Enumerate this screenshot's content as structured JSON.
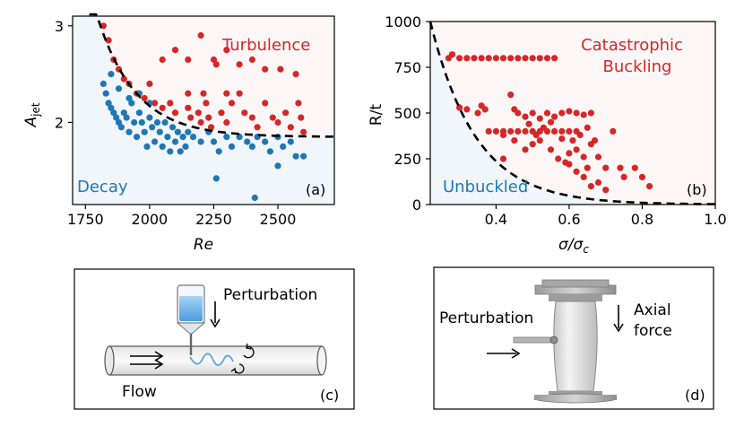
{
  "chart_data": [
    {
      "type": "scatter",
      "panel_label": "(a)",
      "xlabel": "Re",
      "ylabel_base": "A",
      "ylabel_sub": "jet",
      "xlim": [
        1700,
        2720
      ],
      "ylim": [
        1.15,
        3.1
      ],
      "xticks": [
        1750,
        2000,
        2250,
        2500
      ],
      "yticks": [
        2,
        3
      ],
      "region_labels": {
        "upper": "Turbulence",
        "lower": "Decay"
      },
      "colors": {
        "upper": "#d62728",
        "lower": "#1f77b4"
      },
      "series": [
        {
          "name": "Turbulence",
          "points": [
            [
              1820,
              3.0
            ],
            [
              1840,
              2.85
            ],
            [
              1860,
              2.65
            ],
            [
              1880,
              2.55
            ],
            [
              1900,
              2.45
            ],
            [
              1920,
              2.4
            ],
            [
              1950,
              2.3
            ],
            [
              1980,
              2.25
            ],
            [
              2000,
              2.4
            ],
            [
              2020,
              2.2
            ],
            [
              2050,
              2.15
            ],
            [
              2080,
              2.2
            ],
            [
              2100,
              2.1
            ],
            [
              2150,
              2.15
            ],
            [
              2160,
              2.05
            ],
            [
              2190,
              2.1
            ],
            [
              2200,
              2.0
            ],
            [
              2210,
              2.3
            ],
            [
              2230,
              2.05
            ],
            [
              2240,
              1.95
            ],
            [
              2260,
              2.6
            ],
            [
              2280,
              2.1
            ],
            [
              2300,
              2.0
            ],
            [
              2320,
              2.2
            ],
            [
              2350,
              2.6
            ],
            [
              2370,
              2.1
            ],
            [
              2400,
              2.05
            ],
            [
              2420,
              1.95
            ],
            [
              2450,
              2.2
            ],
            [
              2480,
              2.05
            ],
            [
              2500,
              2.0
            ],
            [
              2510,
              2.55
            ],
            [
              2530,
              2.1
            ],
            [
              2550,
              1.95
            ],
            [
              2570,
              2.5
            ],
            [
              2580,
              2.2
            ],
            [
              2590,
              2.05
            ],
            [
              2600,
              1.9
            ],
            [
              2050,
              2.65
            ],
            [
              2100,
              2.75
            ],
            [
              2150,
              2.65
            ],
            [
              2200,
              2.9
            ],
            [
              2250,
              2.65
            ],
            [
              2300,
              2.75
            ],
            [
              2400,
              2.65
            ],
            [
              2450,
              2.55
            ],
            [
              2350,
              2.3
            ],
            [
              2150,
              2.3
            ],
            [
              2220,
              2.2
            ],
            [
              2300,
              2.3
            ]
          ]
        },
        {
          "name": "Decay",
          "points": [
            [
              1820,
              2.4
            ],
            [
              1830,
              2.3
            ],
            [
              1840,
              2.2
            ],
            [
              1850,
              2.15
            ],
            [
              1860,
              2.1
            ],
            [
              1870,
              2.05
            ],
            [
              1880,
              2.0
            ],
            [
              1890,
              1.95
            ],
            [
              1900,
              2.1
            ],
            [
              1910,
              2.05
            ],
            [
              1920,
              1.9
            ],
            [
              1930,
              2.2
            ],
            [
              1940,
              2.0
            ],
            [
              1950,
              1.85
            ],
            [
              1960,
              2.1
            ],
            [
              1970,
              2.0
            ],
            [
              1980,
              1.9
            ],
            [
              1990,
              1.75
            ],
            [
              2000,
              2.05
            ],
            [
              2010,
              1.95
            ],
            [
              2020,
              1.8
            ],
            [
              2030,
              2.0
            ],
            [
              2040,
              1.9
            ],
            [
              2050,
              1.75
            ],
            [
              2060,
              2.0
            ],
            [
              2070,
              1.85
            ],
            [
              2080,
              1.7
            ],
            [
              2090,
              1.95
            ],
            [
              2100,
              1.8
            ],
            [
              2110,
              1.9
            ],
            [
              2120,
              1.7
            ],
            [
              2130,
              1.85
            ],
            [
              2140,
              1.75
            ],
            [
              2150,
              1.9
            ],
            [
              2170,
              1.85
            ],
            [
              2200,
              1.8
            ],
            [
              2230,
              1.9
            ],
            [
              2250,
              1.8
            ],
            [
              2270,
              1.7
            ],
            [
              2300,
              1.85
            ],
            [
              2320,
              1.75
            ],
            [
              2350,
              1.85
            ],
            [
              2380,
              1.8
            ],
            [
              2400,
              1.75
            ],
            [
              2420,
              1.85
            ],
            [
              2450,
              1.8
            ],
            [
              2470,
              1.7
            ],
            [
              2500,
              1.85
            ],
            [
              2520,
              1.75
            ],
            [
              2550,
              1.8
            ],
            [
              2570,
              1.65
            ],
            [
              2260,
              1.42
            ],
            [
              2410,
              1.22
            ],
            [
              2500,
              1.55
            ],
            [
              2600,
              1.65
            ],
            [
              1850,
              2.5
            ],
            [
              1880,
              2.35
            ],
            [
              1920,
              2.25
            ],
            [
              1960,
              2.3
            ],
            [
              2000,
              2.2
            ]
          ]
        }
      ],
      "threshold_curve": {
        "style": "dashed",
        "a0": 1.85,
        "b": 1.3,
        "re0": 1790,
        "scale": 150
      }
    },
    {
      "type": "scatter",
      "panel_label": "(b)",
      "xlabel": "σ/σ",
      "xlabel_sub": "c",
      "ylabel": "R/t",
      "xlim": [
        0.22,
        1.0
      ],
      "ylim": [
        0,
        1000
      ],
      "xticks": [
        0.4,
        0.6,
        0.8,
        1.0
      ],
      "xtick_labels": [
        "0.4",
        "0.6",
        "0.8",
        "1.0"
      ],
      "yticks": [
        0,
        250,
        500,
        750,
        1000
      ],
      "region_labels": {
        "upper": "Catastrophic\nBuckling",
        "lower": "Unbuckled"
      },
      "colors": {
        "upper": "#d62728"
      },
      "series": [
        {
          "name": "Catastrophic Buckling",
          "points": [
            [
              0.27,
              800
            ],
            [
              0.28,
              820
            ],
            [
              0.3,
              800
            ],
            [
              0.32,
              800
            ],
            [
              0.34,
              800
            ],
            [
              0.36,
              800
            ],
            [
              0.38,
              800
            ],
            [
              0.4,
              800
            ],
            [
              0.42,
              800
            ],
            [
              0.44,
              800
            ],
            [
              0.46,
              800
            ],
            [
              0.48,
              800
            ],
            [
              0.5,
              800
            ],
            [
              0.52,
              800
            ],
            [
              0.54,
              800
            ],
            [
              0.56,
              800
            ],
            [
              0.3,
              530
            ],
            [
              0.32,
              520
            ],
            [
              0.35,
              500
            ],
            [
              0.36,
              540
            ],
            [
              0.37,
              520
            ],
            [
              0.38,
              400
            ],
            [
              0.4,
              400
            ],
            [
              0.42,
              400
            ],
            [
              0.44,
              400
            ],
            [
              0.46,
              400
            ],
            [
              0.48,
              400
            ],
            [
              0.5,
              400
            ],
            [
              0.52,
              400
            ],
            [
              0.54,
              400
            ],
            [
              0.56,
              400
            ],
            [
              0.58,
              400
            ],
            [
              0.6,
              400
            ],
            [
              0.62,
              400
            ],
            [
              0.42,
              250
            ],
            [
              0.44,
              600
            ],
            [
              0.45,
              520
            ],
            [
              0.46,
              500
            ],
            [
              0.48,
              480
            ],
            [
              0.5,
              500
            ],
            [
              0.52,
              470
            ],
            [
              0.54,
              500
            ],
            [
              0.56,
              480
            ],
            [
              0.58,
              500
            ],
            [
              0.6,
              510
            ],
            [
              0.62,
              500
            ],
            [
              0.64,
              490
            ],
            [
              0.66,
              500
            ],
            [
              0.42,
              380
            ],
            [
              0.45,
              350
            ],
            [
              0.48,
              300
            ],
            [
              0.5,
              330
            ],
            [
              0.52,
              350
            ],
            [
              0.55,
              300
            ],
            [
              0.58,
              360
            ],
            [
              0.6,
              280
            ],
            [
              0.62,
              300
            ],
            [
              0.64,
              260
            ],
            [
              0.65,
              200
            ],
            [
              0.66,
              330
            ],
            [
              0.68,
              260
            ],
            [
              0.7,
              200
            ],
            [
              0.72,
              400
            ],
            [
              0.74,
              200
            ],
            [
              0.75,
              150
            ],
            [
              0.78,
              200
            ],
            [
              0.8,
              150
            ],
            [
              0.82,
              100
            ],
            [
              0.6,
              220
            ],
            [
              0.62,
              180
            ],
            [
              0.64,
              150
            ],
            [
              0.66,
              100
            ],
            [
              0.68,
              120
            ],
            [
              0.7,
              80
            ],
            [
              0.57,
              250
            ],
            [
              0.59,
              230
            ],
            [
              0.61,
              350
            ],
            [
              0.63,
              380
            ],
            [
              0.65,
              420
            ],
            [
              0.67,
              350
            ],
            [
              0.55,
              450
            ],
            [
              0.53,
              420
            ],
            [
              0.51,
              380
            ],
            [
              0.49,
              440
            ]
          ]
        }
      ],
      "threshold_curve": {
        "style": "dashed",
        "c": 1000,
        "x0": 0.22,
        "k": 8.0
      }
    }
  ],
  "diagram_c": {
    "label_perturbation": "Perturbation",
    "label_flow": "Flow",
    "panel_label": "(c)"
  },
  "diagram_d": {
    "label_perturbation": "Perturbation",
    "label_axial_line1": "Axial",
    "label_axial_line2": "force",
    "panel_label": "(d)"
  }
}
